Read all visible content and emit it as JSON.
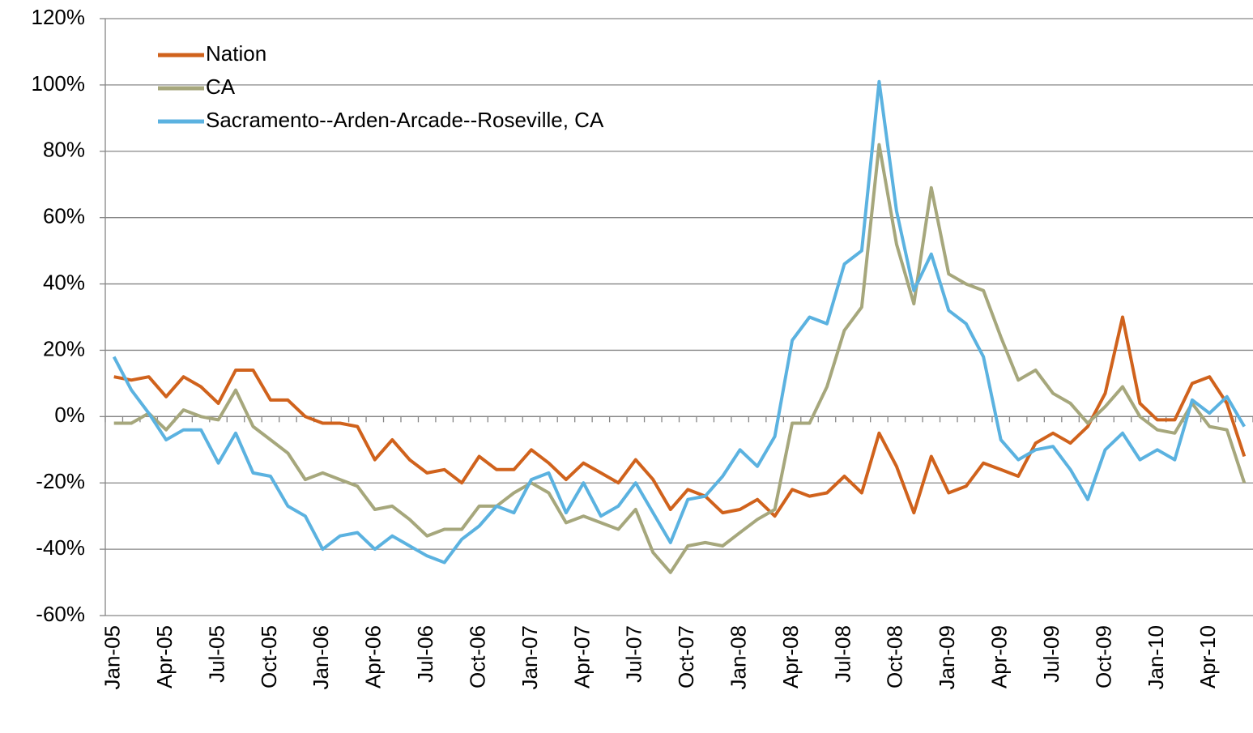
{
  "chart_data": {
    "type": "line",
    "categories": [
      "Jan-05",
      null,
      null,
      "Apr-05",
      null,
      null,
      "Jul-05",
      null,
      null,
      "Oct-05",
      null,
      null,
      "Jan-06",
      null,
      null,
      "Apr-06",
      null,
      null,
      "Jul-06",
      null,
      null,
      "Oct-06",
      null,
      null,
      "Jan-07",
      null,
      null,
      "Apr-07",
      null,
      null,
      "Jul-07",
      null,
      null,
      "Oct-07",
      null,
      null,
      "Jan-08",
      null,
      null,
      "Apr-08",
      null,
      null,
      "Jul-08",
      null,
      null,
      "Oct-08",
      null,
      null,
      "Jan-09",
      null,
      null,
      "Apr-09",
      null,
      null,
      "Jul-09",
      null,
      null,
      "Oct-09",
      null,
      null,
      "Jan-10",
      null,
      null,
      "Apr-10",
      null,
      null
    ],
    "series": [
      {
        "name": "Nation",
        "color": "#d0621c",
        "values": [
          12,
          11,
          12,
          6,
          12,
          9,
          4,
          14,
          14,
          5,
          5,
          0,
          -2,
          -2,
          -3,
          -13,
          -7,
          -13,
          -17,
          -16,
          -20,
          -12,
          -16,
          -16,
          -10,
          -14,
          -19,
          -14,
          -17,
          -20,
          -13,
          -19,
          -28,
          -22,
          -24,
          -29,
          -28,
          -25,
          -30,
          -22,
          -24,
          -23,
          -18,
          -23,
          -5,
          -15,
          -29,
          -12,
          -23,
          -21,
          -14,
          -16,
          -18,
          -8,
          -5,
          -8,
          -3,
          7,
          30,
          4,
          -1,
          -1,
          10,
          12,
          4,
          -12
        ]
      },
      {
        "name": "CA",
        "color": "#a6a77c",
        "values": [
          -2,
          -2,
          1,
          -4,
          2,
          0,
          -1,
          8,
          -3,
          -7,
          -11,
          -19,
          -17,
          -19,
          -21,
          -28,
          -27,
          -31,
          -36,
          -34,
          -34,
          -27,
          -27,
          -23,
          -20,
          -23,
          -32,
          -30,
          -32,
          -34,
          -28,
          -41,
          -47,
          -39,
          -38,
          -39,
          -35,
          -31,
          -28,
          -2,
          -2,
          9,
          26,
          33,
          82,
          52,
          34,
          69,
          43,
          40,
          38,
          24,
          11,
          14,
          7,
          4,
          -2,
          3,
          9,
          0,
          -4,
          -5,
          4,
          -3,
          -4,
          -20
        ]
      },
      {
        "name": "Sacramento--Arden-Arcade--Roseville, CA",
        "color": "#5bb2e0",
        "values": [
          18,
          8,
          1,
          -7,
          -4,
          -4,
          -14,
          -5,
          -17,
          -18,
          -27,
          -30,
          -40,
          -36,
          -35,
          -40,
          -36,
          -39,
          -42,
          -44,
          -37,
          -33,
          -27,
          -29,
          -19,
          -17,
          -29,
          -20,
          -30,
          -27,
          -20,
          -29,
          -38,
          -25,
          -24,
          -18,
          -10,
          -15,
          -6,
          23,
          30,
          28,
          46,
          50,
          101,
          62,
          38,
          49,
          32,
          28,
          18,
          -7,
          -13,
          -10,
          -9,
          -16,
          -25,
          -10,
          -5,
          -13,
          -10,
          -13,
          5,
          1,
          6,
          -3
        ]
      }
    ],
    "ylim": [
      -60,
      120
    ],
    "yticks": [
      {
        "value": -60,
        "label": "-60%"
      },
      {
        "value": -40,
        "label": "-40%"
      },
      {
        "value": -20,
        "label": "-20%"
      },
      {
        "value": 0,
        "label": "0%"
      },
      {
        "value": 20,
        "label": "20%"
      },
      {
        "value": 40,
        "label": "40%"
      },
      {
        "value": 60,
        "label": "60%"
      },
      {
        "value": 80,
        "label": "80%"
      },
      {
        "value": 100,
        "label": "100%"
      },
      {
        "value": 120,
        "label": "120%"
      }
    ],
    "grid": true,
    "legend": "upper-left"
  }
}
